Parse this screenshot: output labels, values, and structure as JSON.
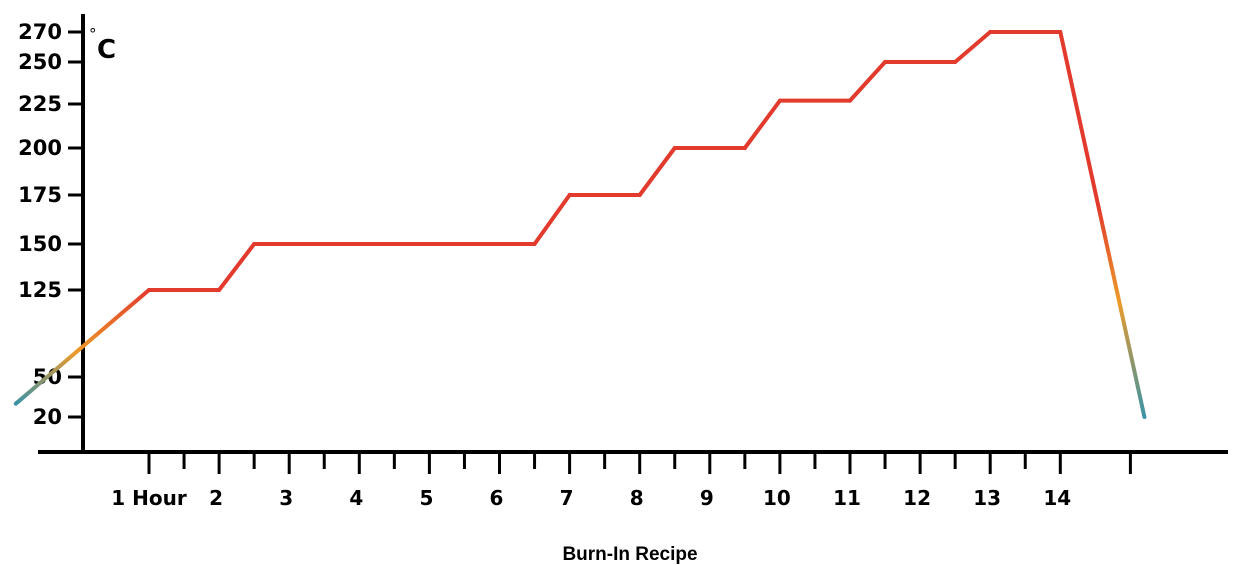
{
  "chart_data": {
    "type": "line",
    "title": "Burn-In Recipe",
    "ylabel_degree": "°",
    "ylabel_unit": "C",
    "xlim": [
      -0.9,
      15.2
    ],
    "ylim": [
      0,
      280
    ],
    "y_ticks": [
      20,
      50,
      125,
      150,
      175,
      200,
      225,
      250,
      270
    ],
    "x_major_ticks": [
      {
        "value": 1,
        "label": "1 Hour"
      },
      {
        "value": 2,
        "label": "2"
      },
      {
        "value": 3,
        "label": "3"
      },
      {
        "value": 4,
        "label": "4"
      },
      {
        "value": 5,
        "label": "5"
      },
      {
        "value": 6,
        "label": "6"
      },
      {
        "value": 7,
        "label": "7"
      },
      {
        "value": 8,
        "label": "8"
      },
      {
        "value": 9,
        "label": "9"
      },
      {
        "value": 10,
        "label": "10"
      },
      {
        "value": 11,
        "label": "11"
      },
      {
        "value": 12,
        "label": "12"
      },
      {
        "value": 13,
        "label": "13"
      },
      {
        "value": 14,
        "label": "14"
      },
      {
        "value": 15,
        "label": ""
      }
    ],
    "x_minor_ticks": [
      1.5,
      2.5,
      3.5,
      4.5,
      5.5,
      6.5,
      7.5,
      8.5,
      9.5,
      10.5,
      11.5,
      12.5,
      13.5
    ],
    "series": [
      {
        "x": [
          -0.9,
          1,
          2,
          2.5,
          6.5,
          7,
          8,
          8.5,
          9.5,
          10,
          11,
          11.5,
          12.5,
          13,
          14,
          15.2
        ],
        "y": [
          30,
          125,
          125,
          150,
          150,
          175,
          175,
          200,
          200,
          227,
          227,
          250,
          250,
          270,
          270,
          20
        ]
      }
    ],
    "colors": {
      "line": "#e23a2c",
      "line_warm": "#ec9a2a",
      "line_cool": "#3a93a6",
      "axis": "#000000"
    }
  }
}
